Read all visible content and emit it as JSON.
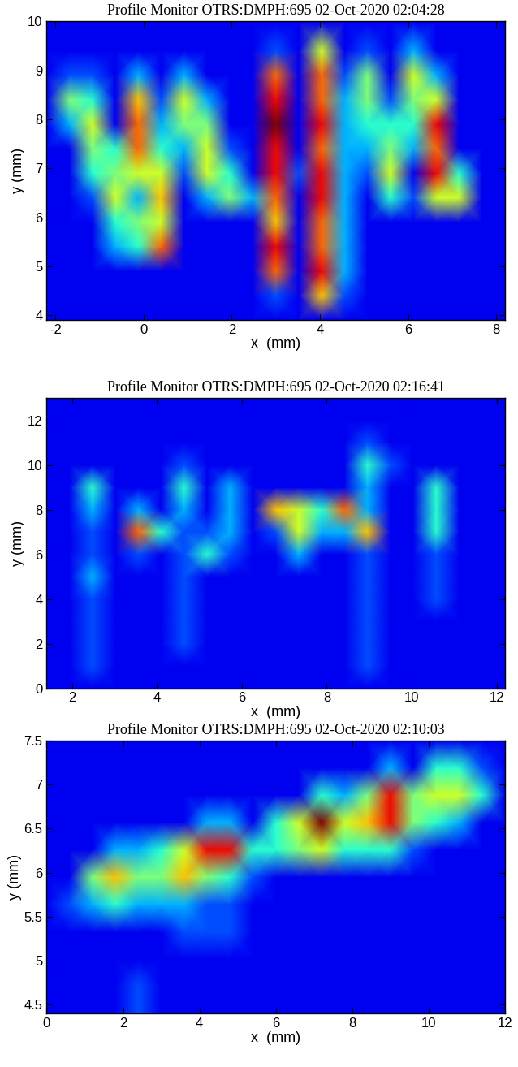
{
  "chart_data": [
    {
      "type": "heatmap",
      "title": "Profile Monitor OTRS:DMPH:695 02-Oct-2020 02:04:28",
      "x_label": "x  (mm)",
      "y_label": "y (mm)",
      "color": "jet",
      "clim": [
        0,
        10
      ],
      "xlim": [
        -2.2,
        8.2
      ],
      "ylim": [
        3.9,
        10
      ],
      "xticks": [
        -2,
        0,
        2,
        4,
        6,
        8
      ],
      "yticks": [
        4,
        5,
        6,
        7,
        8,
        9,
        10
      ],
      "x": [
        -2.2,
        -1.68,
        -1.16,
        -0.64,
        -0.12,
        0.4,
        0.92,
        1.44,
        1.96,
        2.48,
        3.0,
        3.52,
        4.04,
        4.56,
        5.08,
        5.6,
        6.12,
        6.64,
        7.16,
        7.68,
        8.2
      ],
      "y": [
        3.9,
        4.4,
        4.9,
        5.4,
        5.9,
        6.4,
        6.9,
        7.4,
        7.9,
        8.4,
        8.9,
        9.4,
        10.0
      ],
      "cells": [
        [
          1,
          1,
          1,
          1,
          1,
          1,
          1,
          1,
          1,
          1,
          1,
          1,
          1,
          1,
          1,
          1,
          1,
          1,
          1,
          1,
          1
        ],
        [
          1,
          1,
          1,
          1,
          1,
          1,
          1,
          1,
          1,
          1,
          2,
          1,
          7,
          2,
          1,
          1,
          1,
          1,
          1,
          1,
          1
        ],
        [
          1,
          1,
          1,
          1,
          1,
          1,
          1,
          1,
          1,
          1,
          8,
          1,
          9,
          3,
          1,
          1,
          1,
          1,
          1,
          1,
          1
        ],
        [
          1,
          1,
          1,
          3,
          4,
          8,
          1,
          1,
          1,
          1,
          9,
          1,
          8,
          3,
          1,
          1,
          1,
          1,
          1,
          1,
          1
        ],
        [
          1,
          1,
          1,
          4,
          5,
          6,
          1,
          1,
          1,
          1,
          7,
          1,
          8,
          3,
          1,
          1,
          1,
          1,
          1,
          1,
          1
        ],
        [
          1,
          1,
          2,
          6,
          3,
          7,
          1,
          3,
          5,
          3,
          8,
          1,
          9,
          3,
          1,
          4,
          2,
          6,
          6,
          1,
          1
        ],
        [
          1,
          1,
          4,
          5,
          6,
          6,
          2,
          6,
          4,
          1,
          9,
          2,
          9,
          3,
          2,
          6,
          1,
          9,
          4,
          1,
          1
        ],
        [
          1,
          1,
          5,
          4,
          8,
          4,
          3,
          6,
          2,
          1,
          9,
          1,
          8,
          3,
          3,
          5,
          3,
          8,
          1,
          1,
          1
        ],
        [
          1,
          3,
          6,
          1,
          8,
          3,
          5,
          5,
          1,
          1,
          10,
          1,
          9,
          3,
          4,
          4,
          4,
          9,
          1,
          1,
          1
        ],
        [
          1,
          5,
          4,
          1,
          7,
          2,
          6,
          3,
          1,
          1,
          9,
          1,
          8,
          3,
          5,
          2,
          5,
          6,
          1,
          1,
          1
        ],
        [
          1,
          2,
          2,
          1,
          3,
          1,
          3,
          1,
          1,
          1,
          8,
          1,
          8,
          2,
          5,
          1,
          6,
          3,
          1,
          1,
          1
        ],
        [
          1,
          1,
          1,
          1,
          1,
          1,
          1,
          1,
          1,
          1,
          2,
          1,
          6,
          1,
          2,
          1,
          3,
          1,
          1,
          1,
          1
        ],
        [
          1,
          1,
          1,
          1,
          1,
          1,
          1,
          1,
          1,
          1,
          1,
          1,
          1,
          1,
          1,
          1,
          1,
          1,
          1,
          1,
          1
        ]
      ]
    },
    {
      "type": "heatmap",
      "title": "Profile Monitor OTRS:DMPH:695 02-Oct-2020 02:16:41",
      "x_label": "x  (mm)",
      "y_label": "y (mm)",
      "color": "jet",
      "clim": [
        0,
        10
      ],
      "xlim": [
        1.4,
        12.2
      ],
      "ylim": [
        0,
        13
      ],
      "xticks": [
        2,
        4,
        6,
        8,
        10,
        12
      ],
      "yticks": [
        0,
        2,
        4,
        6,
        8,
        10,
        12
      ],
      "x": [
        1.4,
        1.94,
        2.48,
        3.02,
        3.56,
        4.1,
        4.64,
        5.18,
        5.72,
        6.26,
        6.8,
        7.34,
        7.88,
        8.42,
        8.96,
        9.5,
        10.04,
        10.58,
        11.12,
        11.66,
        12.2
      ],
      "y": [
        0,
        1,
        2,
        3,
        4,
        5,
        6,
        7,
        8,
        9,
        10,
        11,
        12,
        13
      ],
      "cells": [
        [
          1,
          1,
          1,
          1,
          1,
          1,
          1,
          1,
          1,
          1,
          1,
          1,
          1,
          1,
          1,
          1,
          1,
          1,
          1,
          1,
          1
        ],
        [
          1,
          1,
          2,
          1,
          1,
          1,
          1,
          1,
          1,
          1,
          1,
          1,
          1,
          1,
          2,
          1,
          1,
          1,
          1,
          1,
          1
        ],
        [
          1,
          1,
          2,
          1,
          1,
          1,
          2,
          1,
          1,
          1,
          1,
          1,
          1,
          1,
          2,
          1,
          1,
          1,
          1,
          1,
          1
        ],
        [
          1,
          1,
          2,
          1,
          1,
          1,
          2,
          1,
          1,
          1,
          1,
          1,
          1,
          1,
          2,
          1,
          1,
          1,
          1,
          1,
          1
        ],
        [
          1,
          1,
          2,
          1,
          1,
          1,
          2,
          1,
          1,
          1,
          1,
          1,
          1,
          1,
          2,
          1,
          1,
          2,
          1,
          1,
          1
        ],
        [
          1,
          1,
          3,
          1,
          1,
          1,
          2,
          1,
          1,
          1,
          1,
          1,
          1,
          1,
          2,
          1,
          1,
          2,
          1,
          1,
          1
        ],
        [
          1,
          1,
          2,
          1,
          2,
          1,
          2,
          4,
          2,
          1,
          1,
          3,
          1,
          1,
          2,
          1,
          1,
          2,
          1,
          1,
          1
        ],
        [
          1,
          1,
          2,
          1,
          8,
          4,
          2,
          2,
          3,
          1,
          2,
          6,
          3,
          3,
          7,
          1,
          1,
          4,
          1,
          1,
          1
        ],
        [
          1,
          1,
          3,
          1,
          3,
          1,
          3,
          1,
          3,
          1,
          7,
          6,
          4,
          8,
          3,
          1,
          1,
          4,
          1,
          1,
          1
        ],
        [
          1,
          1,
          4,
          1,
          1,
          1,
          4,
          1,
          3,
          1,
          1,
          1,
          1,
          1,
          3,
          1,
          1,
          4,
          1,
          1,
          1
        ],
        [
          1,
          1,
          1,
          1,
          1,
          1,
          2,
          1,
          1,
          1,
          1,
          1,
          1,
          1,
          4,
          2,
          1,
          1,
          1,
          1,
          1
        ],
        [
          1,
          1,
          1,
          1,
          1,
          1,
          1,
          1,
          1,
          1,
          1,
          1,
          1,
          1,
          2,
          1,
          1,
          1,
          1,
          1,
          1
        ],
        [
          1,
          1,
          1,
          1,
          1,
          1,
          1,
          1,
          1,
          1,
          1,
          1,
          1,
          1,
          1,
          1,
          1,
          1,
          1,
          1,
          1
        ],
        [
          1,
          1,
          1,
          1,
          1,
          1,
          1,
          1,
          1,
          1,
          1,
          1,
          1,
          1,
          1,
          1,
          1,
          1,
          1,
          1,
          1
        ]
      ]
    },
    {
      "type": "heatmap",
      "title": "Profile Monitor OTRS:DMPH:695 02-Oct-2020 02:10:03",
      "x_label": "x  (mm)",
      "y_label": "y (mm)",
      "color": "jet",
      "clim": [
        0,
        10
      ],
      "xlim": [
        0,
        12
      ],
      "ylim": [
        4.4,
        7.5
      ],
      "xticks": [
        0,
        2,
        4,
        6,
        8,
        10,
        12
      ],
      "yticks": [
        4.5,
        5,
        5.5,
        6,
        6.5,
        7,
        7.5
      ],
      "x": [
        0,
        0.6,
        1.2,
        1.8,
        2.4,
        3.0,
        3.6,
        4.2,
        4.8,
        5.4,
        6.0,
        6.6,
        7.2,
        7.8,
        8.4,
        9.0,
        9.6,
        10.2,
        10.8,
        11.4,
        12.0
      ],
      "y": [
        4.4,
        4.71,
        5.02,
        5.33,
        5.64,
        5.95,
        6.26,
        6.57,
        6.88,
        7.19,
        7.5
      ],
      "cells": [
        [
          1,
          1,
          1,
          1,
          2,
          1,
          1,
          1,
          1,
          1,
          1,
          1,
          1,
          1,
          1,
          1,
          1,
          1,
          1,
          1,
          1
        ],
        [
          1,
          1,
          1,
          1,
          2,
          1,
          1,
          1,
          1,
          1,
          1,
          1,
          1,
          1,
          1,
          1,
          1,
          1,
          1,
          1,
          1
        ],
        [
          1,
          1,
          1,
          1,
          1,
          1,
          1,
          1,
          1,
          1,
          1,
          1,
          1,
          1,
          1,
          1,
          1,
          1,
          1,
          1,
          1
        ],
        [
          1,
          1,
          1,
          1,
          1,
          1,
          2,
          2,
          2,
          1,
          1,
          1,
          1,
          1,
          1,
          1,
          1,
          1,
          1,
          1,
          1
        ],
        [
          1,
          2,
          3,
          4,
          3,
          3,
          3,
          2,
          2,
          1,
          1,
          1,
          1,
          1,
          1,
          1,
          1,
          1,
          1,
          1,
          1
        ],
        [
          1,
          1,
          5,
          7,
          5,
          5,
          7,
          5,
          4,
          2,
          1,
          1,
          1,
          1,
          1,
          1,
          1,
          1,
          1,
          1,
          1
        ],
        [
          1,
          1,
          1,
          3,
          3,
          4,
          6,
          9,
          9,
          4,
          4,
          5,
          6,
          4,
          4,
          4,
          2,
          1,
          1,
          1,
          1
        ],
        [
          1,
          1,
          1,
          1,
          1,
          1,
          1,
          3,
          3,
          1,
          4,
          6,
          10,
          6,
          7,
          9,
          5,
          4,
          3,
          1,
          1
        ],
        [
          1,
          1,
          1,
          1,
          1,
          1,
          1,
          1,
          1,
          1,
          1,
          1,
          4,
          3,
          5,
          9,
          5,
          6,
          6,
          4,
          1
        ],
        [
          1,
          1,
          1,
          1,
          1,
          1,
          1,
          1,
          1,
          1,
          1,
          1,
          1,
          1,
          1,
          3,
          1,
          4,
          4,
          2,
          1
        ],
        [
          1,
          1,
          1,
          1,
          1,
          1,
          1,
          1,
          1,
          1,
          1,
          1,
          1,
          1,
          1,
          1,
          1,
          1,
          1,
          1,
          1
        ]
      ]
    }
  ]
}
